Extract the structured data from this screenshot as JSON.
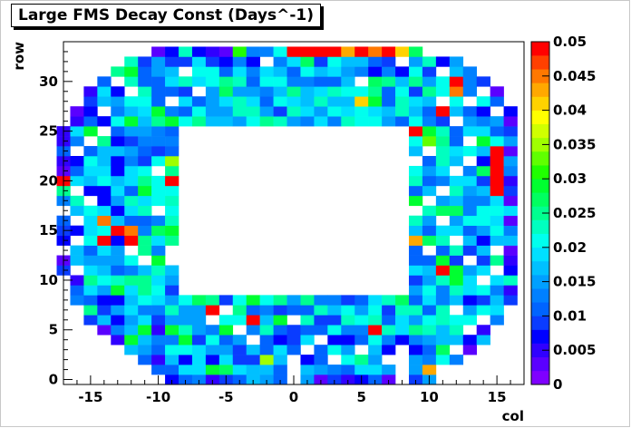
{
  "chart_data": {
    "type": "heatmap",
    "title": "Large FMS Decay Const (Days^-1)",
    "xlabel": "col",
    "ylabel": "row",
    "xlim": [
      -17,
      17
    ],
    "ylim": [
      -0.5,
      34
    ],
    "x_ticks": [
      -15,
      -10,
      -5,
      0,
      5,
      10,
      15
    ],
    "y_ticks": [
      0,
      5,
      10,
      15,
      20,
      25,
      30
    ],
    "cell_width": 1,
    "cell_height": 1,
    "colorbar": {
      "min": 0,
      "max": 0.05,
      "ticks": [
        "0",
        "0.005",
        "0.01",
        "0.015",
        "0.02",
        "0.025",
        "0.03",
        "0.035",
        "0.04",
        "0.045",
        "0.05"
      ],
      "colors": [
        "#7f00ff",
        "#5a00ff",
        "#3000ff",
        "#0000ff",
        "#0a3cff",
        "#0064ff",
        "#0080ff",
        "#00a0ff",
        "#00c0ff",
        "#00e0ff",
        "#00ffee",
        "#00ffc0",
        "#00ff90",
        "#00ff60",
        "#00ff30",
        "#20ff00",
        "#60ff00",
        "#a0ff00",
        "#d0ff00",
        "#ffff00",
        "#ffd200",
        "#ffa800",
        "#ff7800",
        "#ff4000",
        "#ff0000"
      ]
    },
    "detector": {
      "outer_rows": [
        {
          "y": 0,
          "x0": -9,
          "x1": 10
        },
        {
          "y": 1,
          "x0": -10,
          "x1": 11
        },
        {
          "y": 2,
          "x0": -11,
          "x1": 12
        },
        {
          "y": 3,
          "x0": -12,
          "x1": 13
        },
        {
          "y": 4,
          "x0": -13,
          "x1": 14
        },
        {
          "y": 5,
          "x0": -14,
          "x1": 14
        },
        {
          "y": 6,
          "x0": -15,
          "x1": 15
        },
        {
          "y": 7,
          "x0": -15,
          "x1": 15
        },
        {
          "y": 8,
          "x0": -16,
          "x1": 16
        },
        {
          "y": 9,
          "x0": -16,
          "x1": 16
        },
        {
          "y": 10,
          "x0": -16,
          "x1": 16
        },
        {
          "y": 11,
          "x0": -17,
          "x1": 16
        },
        {
          "y": 12,
          "x0": -17,
          "x1": 16
        },
        {
          "y": 13,
          "x0": -17,
          "x1": 16
        },
        {
          "y": 14,
          "x0": -17,
          "x1": 16
        },
        {
          "y": 15,
          "x0": -17,
          "x1": 16
        },
        {
          "y": 16,
          "x0": -17,
          "x1": 16
        },
        {
          "y": 17,
          "x0": -17,
          "x1": 16
        },
        {
          "y": 18,
          "x0": -17,
          "x1": 16
        },
        {
          "y": 19,
          "x0": -17,
          "x1": 16
        },
        {
          "y": 20,
          "x0": -17,
          "x1": 16
        },
        {
          "y": 21,
          "x0": -17,
          "x1": 16
        },
        {
          "y": 22,
          "x0": -17,
          "x1": 16
        },
        {
          "y": 23,
          "x0": -17,
          "x1": 16
        },
        {
          "y": 24,
          "x0": -17,
          "x1": 16
        },
        {
          "y": 25,
          "x0": -17,
          "x1": 16
        },
        {
          "y": 26,
          "x0": -16,
          "x1": 16
        },
        {
          "y": 27,
          "x0": -16,
          "x1": 16
        },
        {
          "y": 28,
          "x0": -15,
          "x1": 15
        },
        {
          "y": 29,
          "x0": -15,
          "x1": 15
        },
        {
          "y": 30,
          "x0": -14,
          "x1": 14
        },
        {
          "y": 31,
          "x0": -13,
          "x1": 13
        },
        {
          "y": 32,
          "x0": -12,
          "x1": 12
        },
        {
          "y": 33,
          "x0": -10,
          "x1": 9
        }
      ],
      "hole": {
        "x0": -8,
        "x1": 8,
        "y0": 9,
        "y1": 25
      },
      "missing_cells": [
        [
          -16,
          23
        ],
        [
          -16,
          19
        ],
        [
          -15,
          18
        ],
        [
          -17,
          17
        ],
        [
          -16,
          16
        ],
        [
          -17,
          13
        ],
        [
          -16,
          11
        ],
        [
          -17,
          10
        ],
        [
          -12,
          13
        ],
        [
          -11,
          12
        ],
        [
          -9,
          12
        ],
        [
          -9,
          13
        ],
        [
          -10,
          17
        ],
        [
          -10,
          21
        ],
        [
          -9,
          28
        ],
        [
          -8,
          31
        ],
        [
          -7,
          29
        ],
        [
          -14,
          27
        ],
        [
          -13,
          30
        ],
        [
          -12,
          29
        ],
        [
          -5,
          7
        ],
        [
          -4,
          5
        ],
        [
          -6,
          6
        ],
        [
          -3,
          4
        ],
        [
          0,
          6
        ],
        [
          1,
          3
        ],
        [
          2,
          4
        ],
        [
          3,
          2
        ],
        [
          5,
          3
        ],
        [
          7,
          2
        ],
        [
          8,
          3
        ],
        [
          11,
          1
        ],
        [
          12,
          3
        ],
        [
          13,
          5
        ],
        [
          14,
          6
        ],
        [
          12,
          7
        ],
        [
          14,
          10
        ],
        [
          15,
          11
        ],
        [
          13,
          12
        ],
        [
          15,
          13
        ],
        [
          12,
          14
        ],
        [
          10,
          13
        ],
        [
          11,
          16
        ],
        [
          9,
          17
        ],
        [
          10,
          18
        ],
        [
          11,
          19
        ],
        [
          12,
          21
        ],
        [
          13,
          22
        ],
        [
          9,
          22
        ],
        [
          10,
          23
        ],
        [
          13,
          24
        ],
        [
          12,
          26
        ],
        [
          15,
          27
        ],
        [
          11,
          28
        ],
        [
          13,
          28
        ],
        [
          14,
          29
        ],
        [
          11,
          31
        ],
        [
          8,
          32
        ],
        [
          5,
          30
        ],
        [
          -2,
          32
        ],
        [
          -15,
          24
        ],
        [
          -14,
          25
        ],
        [
          -16,
          14
        ]
      ],
      "white_x_lines": [
        0,
        8
      ],
      "white_y_lines": [
        9
      ]
    },
    "highlight_cells": [
      {
        "x": -4,
        "y": 33,
        "v": 0.03
      },
      {
        "x": 0,
        "y": 33,
        "v": 0.05
      },
      {
        "x": 1,
        "y": 33,
        "v": 0.05
      },
      {
        "x": 2,
        "y": 33,
        "v": 0.05
      },
      {
        "x": 3,
        "y": 33,
        "v": 0.05
      },
      {
        "x": 4,
        "y": 33,
        "v": 0.043
      },
      {
        "x": 5,
        "y": 33,
        "v": 0.048
      },
      {
        "x": 6,
        "y": 33,
        "v": 0.045
      },
      {
        "x": 7,
        "y": 33,
        "v": 0.05
      },
      {
        "x": 8,
        "y": 33,
        "v": 0.04
      },
      {
        "x": 9,
        "y": 33,
        "v": 0.028
      },
      {
        "x": 15,
        "y": 21,
        "v": 0.05
      },
      {
        "x": 15,
        "y": 22,
        "v": 0.05
      },
      {
        "x": 15,
        "y": 23,
        "v": 0.05
      },
      {
        "x": 15,
        "y": 20,
        "v": 0.049
      },
      {
        "x": 15,
        "y": 19,
        "v": 0.048
      },
      {
        "x": -9,
        "y": 20,
        "v": 0.05
      },
      {
        "x": -17,
        "y": 20,
        "v": 0.05
      },
      {
        "x": -14,
        "y": 16,
        "v": 0.045
      },
      {
        "x": -13,
        "y": 15,
        "v": 0.05
      },
      {
        "x": -12,
        "y": 15,
        "v": 0.045
      },
      {
        "x": -14,
        "y": 14,
        "v": 0.05
      },
      {
        "x": -12,
        "y": 14,
        "v": 0.05
      },
      {
        "x": -6,
        "y": 7,
        "v": 0.05
      },
      {
        "x": -5,
        "y": 7,
        "v": 0.05
      },
      {
        "x": -3,
        "y": 6,
        "v": 0.05
      },
      {
        "x": 6,
        "y": 5,
        "v": 0.05
      },
      {
        "x": 9,
        "y": 14,
        "v": 0.043
      },
      {
        "x": 11,
        "y": 11,
        "v": 0.05
      },
      {
        "x": 12,
        "y": 30,
        "v": 0.05
      },
      {
        "x": 12,
        "y": 29,
        "v": 0.045
      },
      {
        "x": 11,
        "y": 27,
        "v": 0.05
      },
      {
        "x": 9,
        "y": 25,
        "v": 0.05
      },
      {
        "x": 5,
        "y": 28,
        "v": 0.04
      },
      {
        "x": 10,
        "y": 1,
        "v": 0.043
      },
      {
        "x": 10,
        "y": 24,
        "v": 0.033
      },
      {
        "x": -2,
        "y": 2,
        "v": 0.035
      },
      {
        "x": -9,
        "y": 22,
        "v": 0.035
      },
      {
        "x": -17,
        "y": 25,
        "v": 0.005
      },
      {
        "x": -17,
        "y": 22,
        "v": 0.005
      },
      {
        "x": -10,
        "y": 2,
        "v": 0.005
      },
      {
        "x": -10,
        "y": 5,
        "v": 0.005
      }
    ]
  }
}
